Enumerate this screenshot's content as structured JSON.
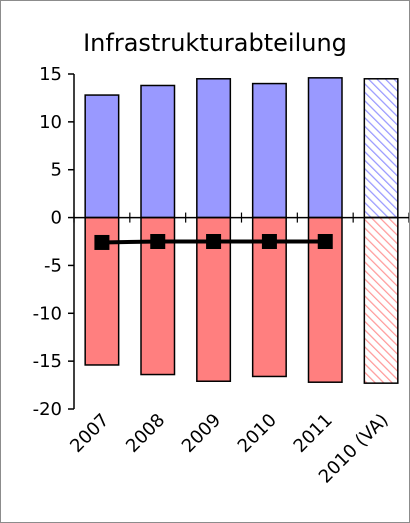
{
  "chart_data": {
    "type": "bar",
    "title": "Infrastrukturabteilung",
    "xlabel": "",
    "ylabel": "",
    "ylim": [
      -20,
      15
    ],
    "yticks": [
      15,
      10,
      5,
      0,
      -5,
      -10,
      -15,
      -20
    ],
    "categories": [
      "2007",
      "2008",
      "2009",
      "2010",
      "2011",
      "2010 (VA)"
    ],
    "series": [
      {
        "role": "positive",
        "values": [
          12.8,
          13.8,
          14.5,
          14.0,
          14.6,
          14.5
        ],
        "color": "#9999ff"
      },
      {
        "role": "negative",
        "values": [
          -15.4,
          -16.4,
          -17.1,
          -16.6,
          -17.2,
          -17.3
        ],
        "color": "#ff7f7f"
      },
      {
        "role": "line",
        "values": [
          -2.6,
          -2.5,
          -2.5,
          -2.5,
          -2.5,
          null
        ],
        "color": "#000000"
      }
    ],
    "hatched_categories": [
      "2010 (VA)"
    ],
    "grid": false,
    "legend": "none"
  }
}
